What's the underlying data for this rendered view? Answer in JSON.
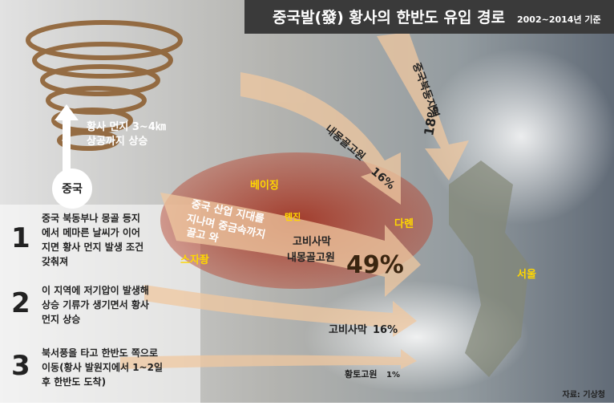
{
  "header": {
    "title": "중국발(發) 황사의 한반도 유입 경로",
    "subtitle": "2002~2014년 기준"
  },
  "vortex": {
    "lines": [
      "황사 먼지 3~4㎞",
      "상공까지 상승"
    ],
    "origin": "중국"
  },
  "steps": [
    {
      "number": "1",
      "lines": [
        "중국 북동부나 몽골 등지",
        "에서 메마른 날씨가 이어",
        "지면 황사 먼지 발생 조건",
        "갖춰져"
      ]
    },
    {
      "number": "2",
      "lines": [
        "이 지역에 저기압이 발생해",
        "상승 기류가 생기면서 황사",
        "먼지 상승"
      ]
    },
    {
      "number": "3",
      "lines": [
        "북서풍을 타고 한반도 쪽으로",
        "이동(황사 발원지에서 1~2일",
        "후 한반도 도착)"
      ]
    }
  ],
  "cities": [
    "베이징",
    "톈진",
    "다롄",
    "스자좡",
    "서울"
  ],
  "annotation": [
    "중국 산업 지대를",
    "지나며 중금속까지",
    "끌고 와"
  ],
  "routes": [
    {
      "name": "중국북동지역",
      "share": "18%"
    },
    {
      "name": "내몽골고원",
      "share": "16%"
    },
    {
      "name": "고비사막",
      "name2": "내몽골고원",
      "share": "49%"
    },
    {
      "name": "고비사막",
      "share": "16%"
    },
    {
      "name": "황토고원",
      "share": "1%"
    }
  ],
  "source": "자료: 기상청"
}
